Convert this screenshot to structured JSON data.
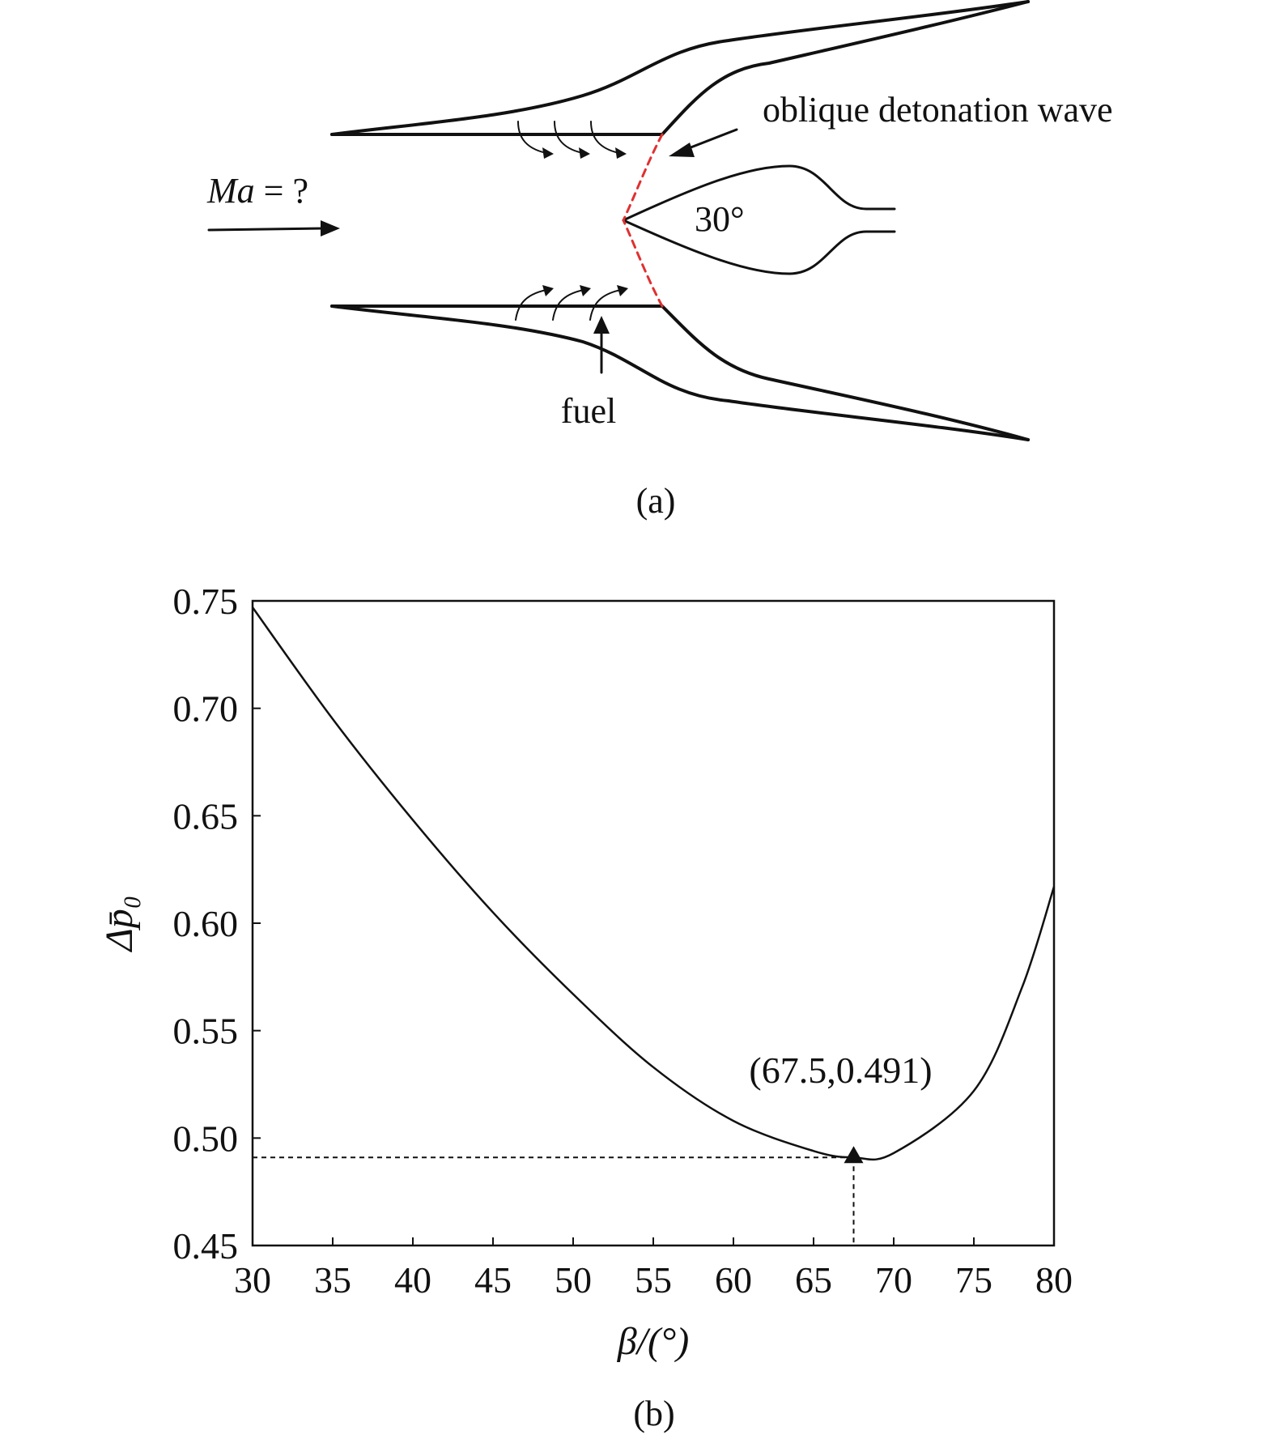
{
  "figure_a": {
    "label": "(a)",
    "mach_label": "Ma",
    "mach_suffix": " = ?",
    "wave_label": "oblique detonation wave",
    "angle_label": "30°",
    "fuel_label": "fuel"
  },
  "figure_b": {
    "label": "(b)"
  },
  "chart_data": {
    "type": "line",
    "xlabel": "β/(°)",
    "ylabel": "Δp̄₀",
    "xlim": [
      30,
      80
    ],
    "ylim": [
      0.45,
      0.75
    ],
    "xticks": [
      "30",
      "35",
      "40",
      "45",
      "50",
      "55",
      "60",
      "65",
      "70",
      "75",
      "80"
    ],
    "yticks": [
      "0.45",
      "0.50",
      "0.55",
      "0.60",
      "0.65",
      "0.70",
      "0.75"
    ],
    "grid": false,
    "series": [
      {
        "x": [
          30,
          35,
          40,
          45,
          50,
          55,
          60,
          65,
          67.5,
          70,
          75,
          78,
          80
        ],
        "y": [
          0.747,
          0.695,
          0.648,
          0.605,
          0.567,
          0.533,
          0.508,
          0.494,
          0.491,
          0.493,
          0.522,
          0.57,
          0.617
        ]
      }
    ],
    "marker": {
      "x": 67.5,
      "y": 0.491,
      "label": "(67.5,0.491)"
    }
  }
}
